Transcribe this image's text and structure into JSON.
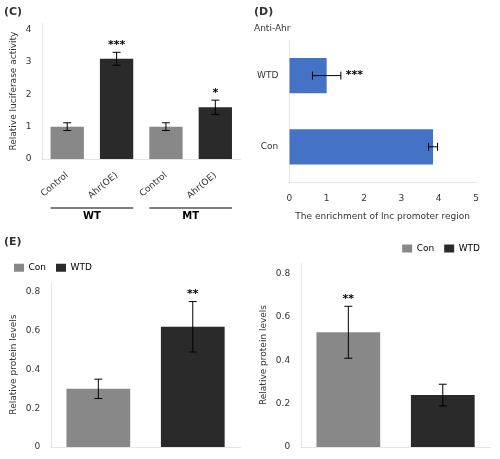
{
  "chart_data": [
    {
      "type": "bar",
      "title": "(C)",
      "categories": [
        "Control",
        "Ahr(OE)",
        "Control",
        "Ahr(OE)"
      ],
      "values": [
        1.0,
        3.1,
        1.0,
        1.6
      ],
      "errors": [
        0.12,
        0.2,
        0.12,
        0.22
      ],
      "colors": [
        "#888888",
        "#2a2a2a",
        "#888888",
        "#2a2a2a"
      ],
      "ylabel": "Relative luciferase activity",
      "ylim": [
        0,
        4.2
      ],
      "yticks": [
        0,
        1,
        2,
        3,
        4
      ],
      "grid": false,
      "annotations": [
        {
          "text": "***",
          "index": 1
        },
        {
          "text": "*",
          "index": 3
        },
        {
          "text": "WT",
          "indices": [
            0,
            1
          ]
        },
        {
          "text": "MT",
          "indices": [
            2,
            3
          ]
        }
      ]
    },
    {
      "type": "bar",
      "title": "(D)",
      "subtitle": "Anti-Ahr",
      "orientation": "horizontal",
      "categories": [
        "WTD",
        "Con"
      ],
      "values": [
        1.0,
        3.85
      ],
      "errors": [
        0.38,
        0.12
      ],
      "color": "#4472c4",
      "xlabel": "The enrichment of lnc promoter region",
      "xlim": [
        0,
        5
      ],
      "xticks": [
        0,
        1,
        2,
        3,
        4,
        5
      ],
      "grid": false,
      "annotations": [
        {
          "text": "***",
          "index": 0
        }
      ]
    },
    {
      "type": "bar",
      "title": "(E)",
      "categories": [
        "Con",
        "WTD"
      ],
      "values": [
        0.3,
        0.62
      ],
      "errors": [
        0.05,
        0.13
      ],
      "colors": [
        "#888888",
        "#2a2a2a"
      ],
      "ylabel": "Relative protein levels",
      "ylim": [
        0,
        0.85
      ],
      "yticks": [
        0,
        0.2,
        0.4,
        0.6,
        0.8
      ],
      "grid": false,
      "tick_labels": "y",
      "legend": "upper left",
      "annotations": [
        {
          "text": "**",
          "index": 1
        }
      ]
    },
    {
      "type": "bar",
      "categories": [
        "Con",
        "WTD"
      ],
      "values": [
        0.53,
        0.24
      ],
      "errors": [
        0.12,
        0.05
      ],
      "colors": [
        "#888888",
        "#2a2a2a"
      ],
      "ylabel": "Relative protein levels",
      "ylim": [
        0,
        0.85
      ],
      "yticks": [
        0,
        0.2,
        0.4,
        0.6,
        0.8
      ],
      "grid": false,
      "tick_labels": "y",
      "legend": "upper right",
      "annotations": [
        {
          "text": "**",
          "index": 0
        }
      ]
    }
  ]
}
